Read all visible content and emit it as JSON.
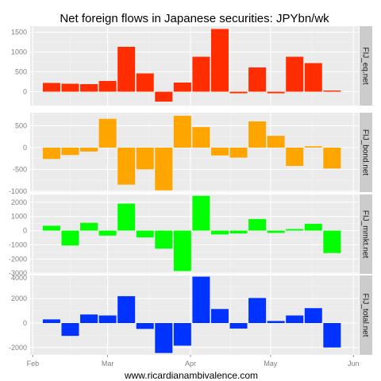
{
  "chart_data": {
    "type": "bar",
    "title": "Net foreign flows in Japanese securities: JPYbn/wk",
    "caption": "www.ricardianambivalence.com",
    "x_range": [
      "2014-01-31",
      "2014-06-03"
    ],
    "x_ticks": [
      {
        "label": "Feb",
        "date": "2014-02-01"
      },
      {
        "label": "Mar",
        "date": "2014-03-01"
      },
      {
        "label": "Apr",
        "date": "2014-04-01"
      },
      {
        "label": "May",
        "date": "2014-05-01"
      },
      {
        "label": "Jun",
        "date": "2014-06-01"
      }
    ],
    "x": [
      "2014-02-08",
      "2014-02-15",
      "2014-02-22",
      "2014-03-01",
      "2014-03-08",
      "2014-03-15",
      "2014-03-22",
      "2014-03-29",
      "2014-04-05",
      "2014-04-12",
      "2014-04-19",
      "2014-04-26",
      "2014-05-03",
      "2014-05-10",
      "2014-05-17",
      "2014-05-24",
      "2014-05-31"
    ],
    "panels": [
      {
        "name": "FIJ_eq.net",
        "color": "#ff2d00",
        "ylim": [
          -350,
          1650
        ],
        "yticks": [
          0,
          500,
          1000,
          1500
        ],
        "values": [
          220,
          200,
          190,
          270,
          1130,
          460,
          -250,
          230,
          880,
          1580,
          -40,
          610,
          -40,
          880,
          720,
          30,
          null
        ]
      },
      {
        "name": "FIJ_bond.net",
        "color": "#ffa500",
        "ylim": [
          -1020,
          800
        ],
        "yticks": [
          -1000,
          -500,
          0,
          500
        ],
        "values": [
          -260,
          -170,
          -90,
          660,
          -850,
          -500,
          -980,
          730,
          470,
          -180,
          -230,
          600,
          270,
          -420,
          30,
          -480,
          null
        ]
      },
      {
        "name": "FIJ_mmkt.net",
        "color": "#00ff00",
        "ylim": [
          -3050,
          2550
        ],
        "yticks": [
          -3000,
          -2000,
          -1000,
          0,
          1000,
          2000
        ],
        "values": [
          340,
          -1050,
          550,
          -350,
          1900,
          -480,
          -1270,
          -2850,
          2450,
          -270,
          -200,
          820,
          -160,
          110,
          480,
          -1580,
          null
        ]
      },
      {
        "name": "FIJ_total.net",
        "color": "#0033ff",
        "ylim": [
          -2600,
          3900
        ],
        "yticks": [
          -2000,
          0,
          2000,
          4000
        ],
        "values": [
          300,
          -1050,
          700,
          620,
          2200,
          -480,
          -2450,
          -1850,
          3800,
          1150,
          -450,
          2050,
          170,
          620,
          1220,
          -2000,
          null
        ]
      }
    ]
  }
}
